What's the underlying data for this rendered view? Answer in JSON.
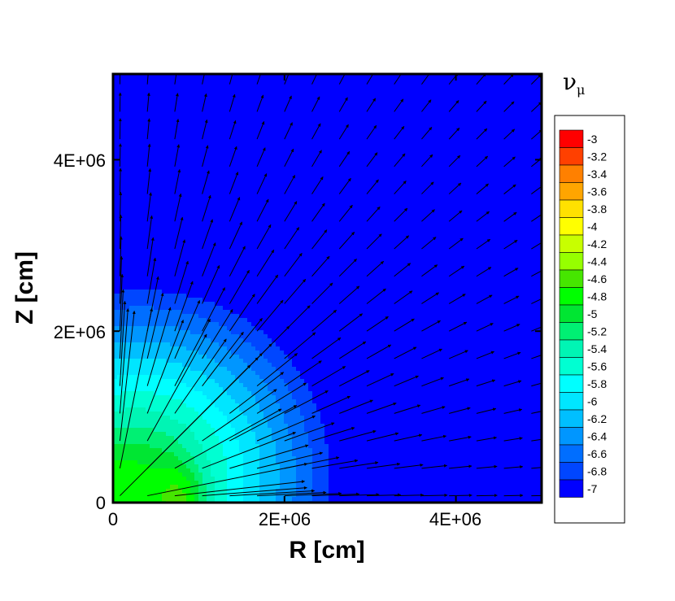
{
  "chart_data": {
    "type": "heatmap",
    "subtype": "filled-contour-with-vector-field",
    "xlabel": "R [cm]",
    "ylabel": "Z [cm]",
    "xlim": [
      0,
      5000000
    ],
    "ylim": [
      0,
      5000000
    ],
    "x_ticks": [
      "0",
      "2E+06",
      "4E+06"
    ],
    "x_tick_values": [
      0,
      2000000,
      4000000
    ],
    "y_ticks": [
      "0",
      "2E+06",
      "4E+06"
    ],
    "y_tick_values": [
      0,
      2000000,
      4000000
    ],
    "legend": {
      "title_symbol": "ν",
      "title_subscript": "μ",
      "placement": "right",
      "levels": [
        -3,
        -3.2,
        -3.4,
        -3.6,
        -3.8,
        -4,
        -4.2,
        -4.4,
        -4.6,
        -4.8,
        -5,
        -5.2,
        -5.4,
        -5.6,
        -5.8,
        -6,
        -6.2,
        -6.4,
        -6.6,
        -6.8,
        -7
      ],
      "level_labels": [
        "-3",
        "-3.2",
        "-3.4",
        "-3.6",
        "-3.8",
        "-4",
        "-4.2",
        "-4.4",
        "-4.6",
        "-4.8",
        "-5",
        "-5.2",
        "-5.4",
        "-5.6",
        "-5.8",
        "-6",
        "-6.2",
        "-6.4",
        "-6.6",
        "-6.8",
        "-7"
      ],
      "colors": [
        "#ff0000",
        "#ff4000",
        "#ff8000",
        "#ffa500",
        "#ffe100",
        "#ffff00",
        "#c8ff00",
        "#96ff00",
        "#46e600",
        "#00ff00",
        "#00e632",
        "#00f073",
        "#00f5b4",
        "#00ffd2",
        "#00ffff",
        "#00e6ff",
        "#00bfff",
        "#0096ff",
        "#006eff",
        "#0046ff",
        "#0000ff"
      ]
    },
    "grid": false,
    "vector_field": true
  }
}
